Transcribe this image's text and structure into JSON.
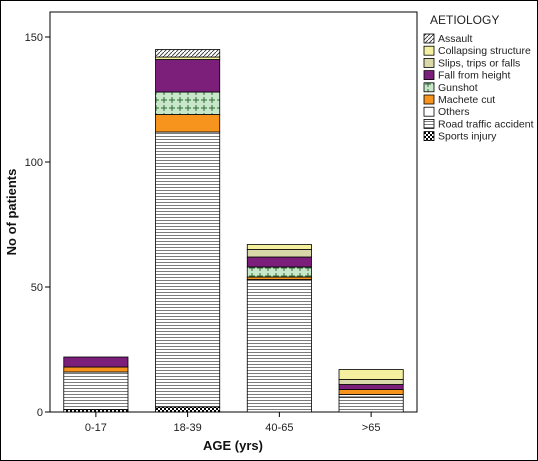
{
  "chart_data": {
    "type": "bar",
    "stacked": true,
    "xlabel": "AGE (yrs)",
    "ylabel": "No of patients",
    "ylim": [
      0,
      160
    ],
    "yticks": [
      0,
      50,
      100,
      150
    ],
    "categories": [
      "0-17",
      "18-39",
      "40-65",
      ">65"
    ],
    "legend_title": "AETIOLOGY",
    "legend_position": "right",
    "series": [
      {
        "name": "Sports injury",
        "values": [
          1,
          2,
          0,
          0
        ],
        "color": "#000000",
        "pattern": "checker"
      },
      {
        "name": "Road traffic accident",
        "values": [
          15,
          110,
          53,
          6
        ],
        "color": "#d9d9d9",
        "pattern": "hlines"
      },
      {
        "name": "Others",
        "values": [
          0,
          0,
          0,
          1
        ],
        "color": "#ffffff",
        "pattern": "none"
      },
      {
        "name": "Machete cut",
        "values": [
          2,
          7,
          1,
          2
        ],
        "color": "#f7941d",
        "pattern": "none"
      },
      {
        "name": "Gunshot",
        "values": [
          0,
          9,
          4,
          0
        ],
        "color": "#c8e6c9",
        "pattern": "cross"
      },
      {
        "name": "Fall from height",
        "values": [
          4,
          13,
          4,
          2
        ],
        "color": "#7b1f7b",
        "pattern": "none"
      },
      {
        "name": "Slips, trips or falls",
        "values": [
          0,
          0,
          3,
          2
        ],
        "color": "#d8d8a8",
        "pattern": "none"
      },
      {
        "name": "Collapsing structure",
        "values": [
          0,
          1,
          2,
          4
        ],
        "color": "#f5f0a0",
        "pattern": "none"
      },
      {
        "name": "Assault",
        "values": [
          0,
          3,
          0,
          0
        ],
        "color": "#ffffff",
        "pattern": "diag"
      }
    ]
  },
  "legend_order": [
    "Assault",
    "Collapsing structure",
    "Slips, trips or falls",
    "Fall from height",
    "Gunshot",
    "Machete cut",
    "Others",
    "Road traffic accident",
    "Sports injury"
  ]
}
